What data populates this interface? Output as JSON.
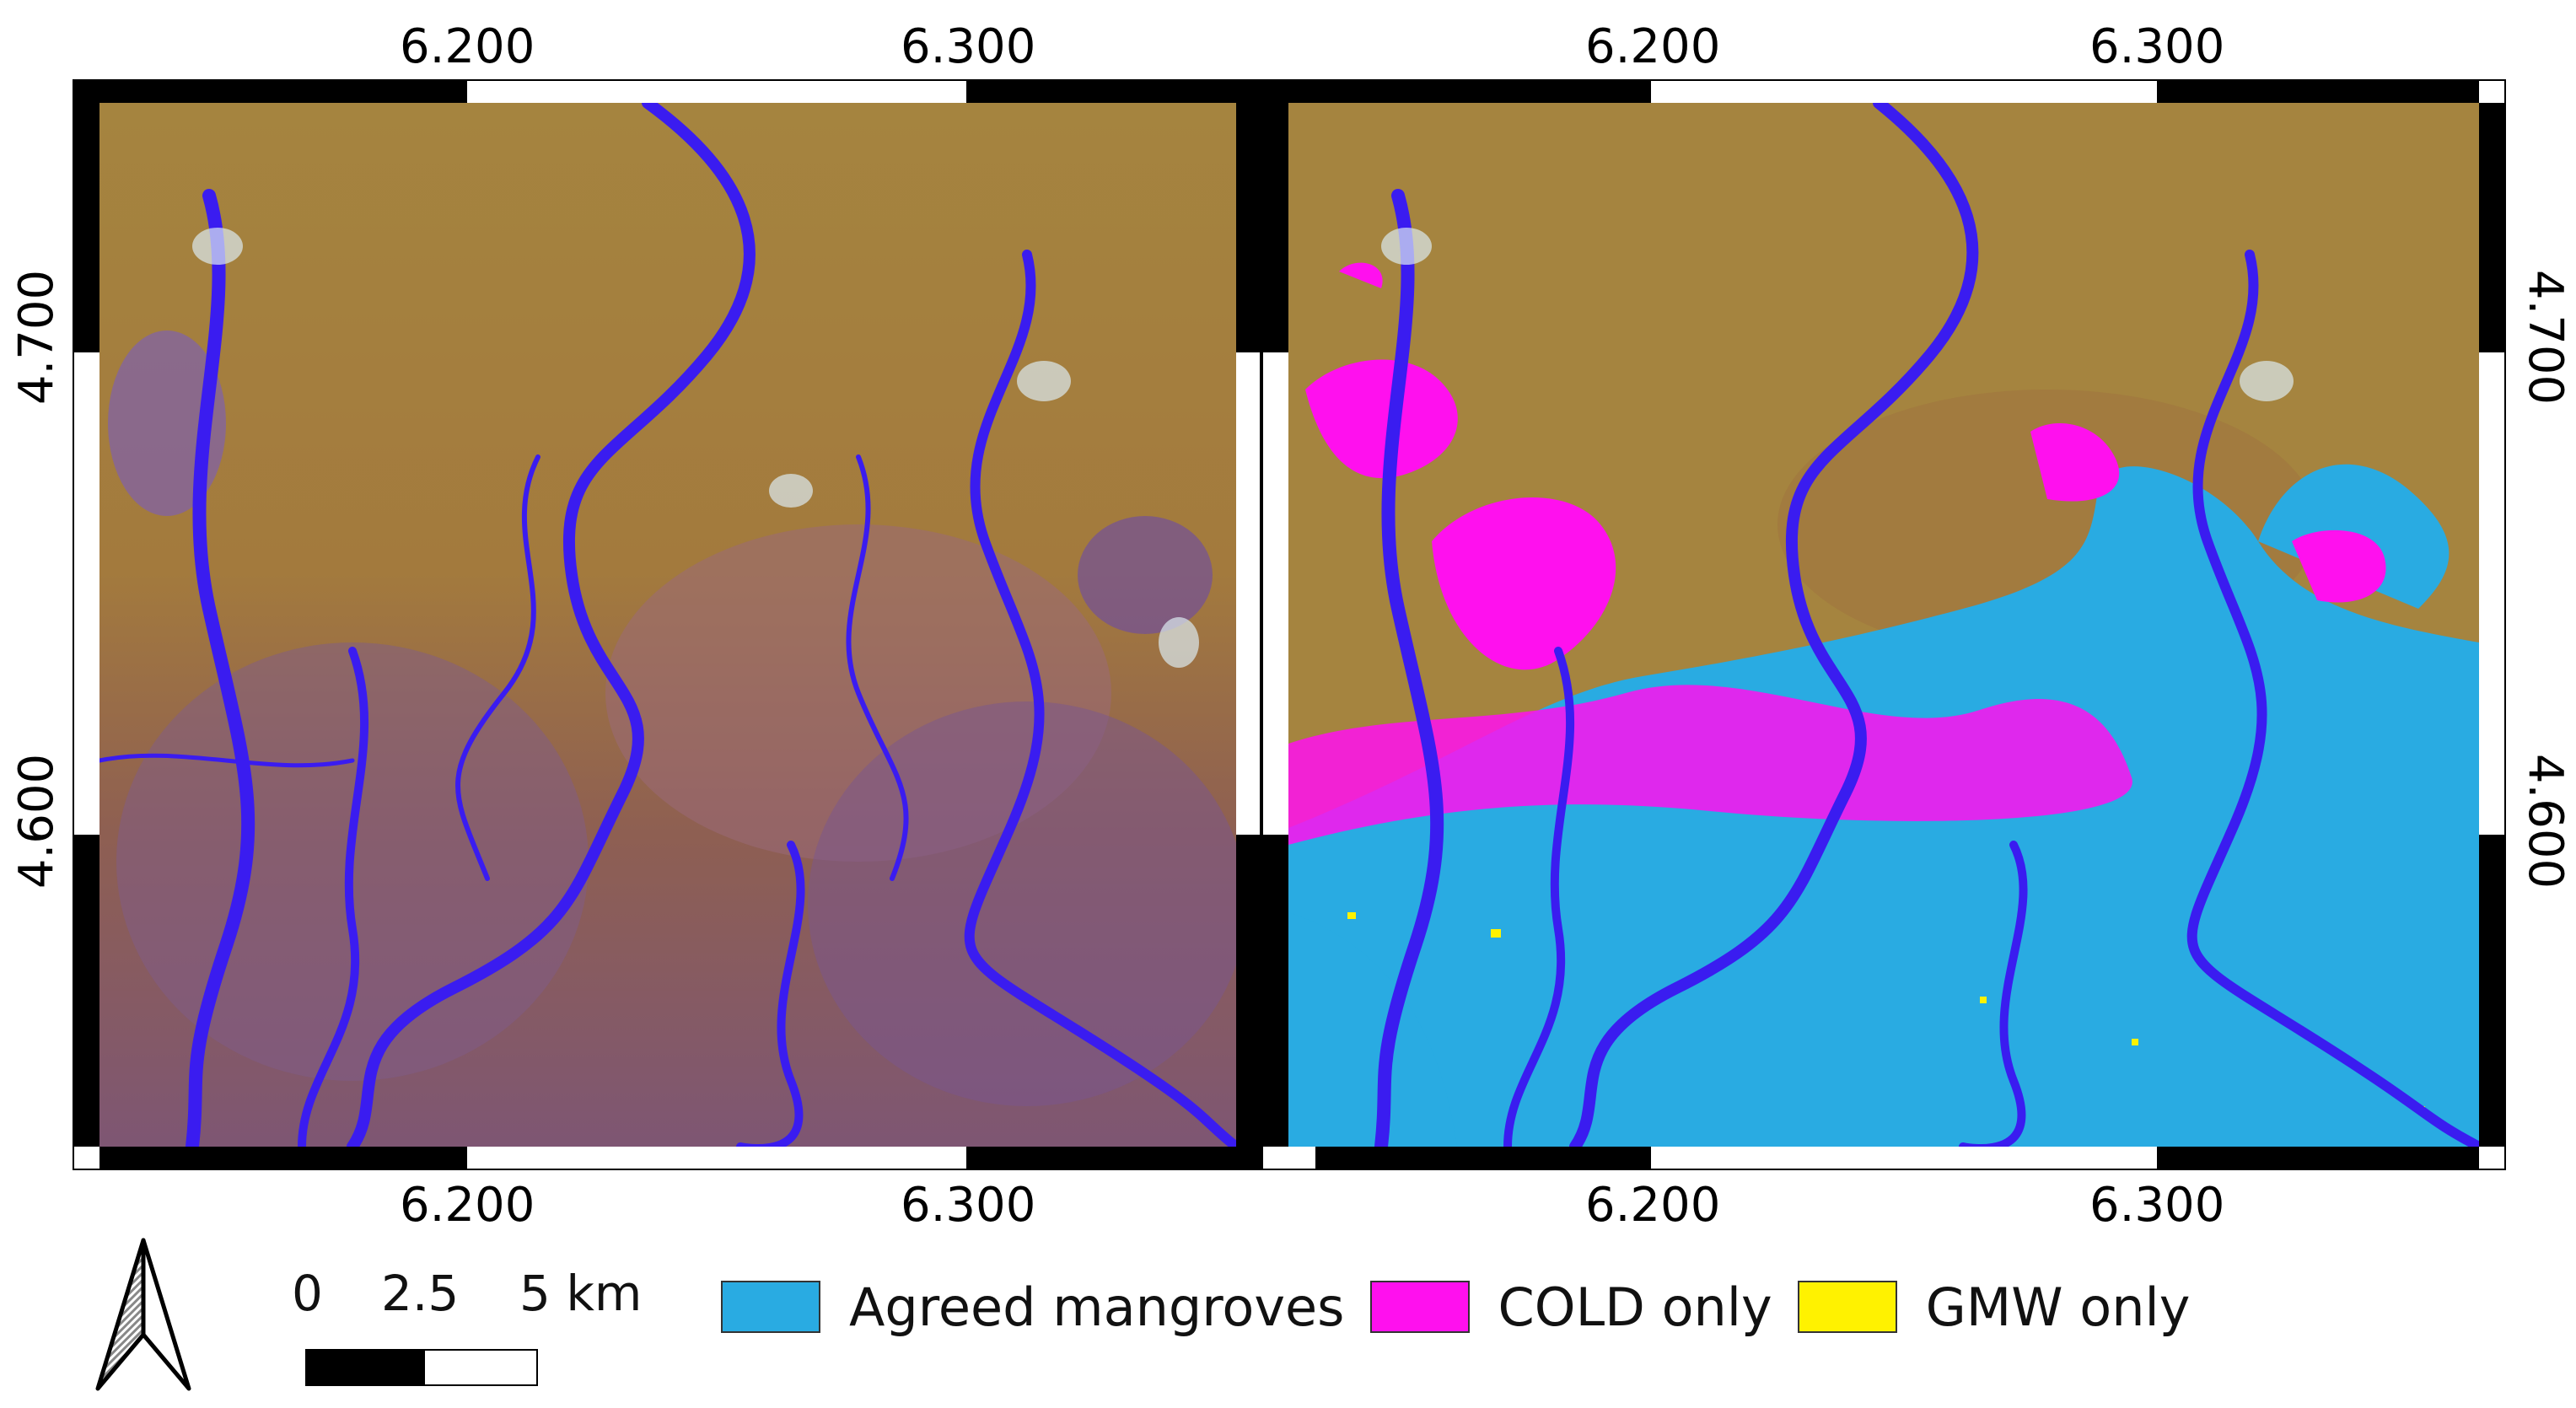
{
  "maps": [
    {
      "id": "left",
      "title": ""
    },
    {
      "id": "right",
      "title": ""
    }
  ],
  "axes": {
    "x_ticks": [
      "6.200",
      "6.300"
    ],
    "y_ticks": [
      "4.700",
      "4.600"
    ]
  },
  "legend": {
    "items": [
      {
        "label": "Agreed mangroves",
        "color": "#29ABE2"
      },
      {
        "label": "COLD only",
        "color": "#FF10EE"
      },
      {
        "label": "GMW only",
        "color": "#FFF200"
      }
    ]
  },
  "scale_bar": {
    "labels": [
      "0",
      "2.5",
      "5 km"
    ]
  },
  "colors": {
    "land": "#A07A3A",
    "river": "#3A1CF0",
    "wetland": "#8A5A9A"
  },
  "north_arrow": "north-arrow-icon"
}
